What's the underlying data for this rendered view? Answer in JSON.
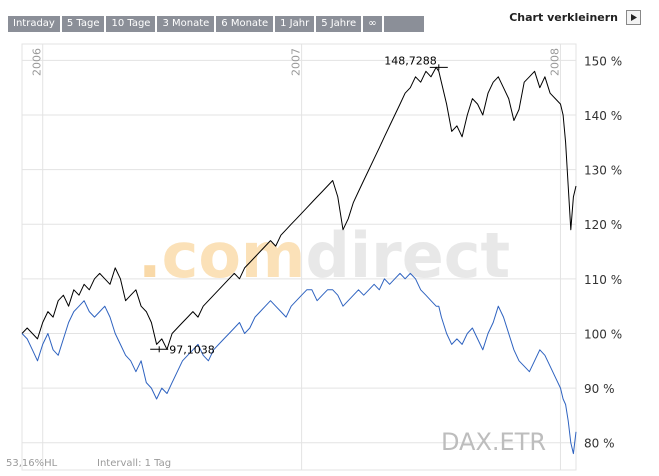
{
  "tabs": [
    "Intraday",
    "5 Tage",
    "10 Tage",
    "3 Monate",
    "6 Monate",
    "1 Jahr",
    "5 Jahre",
    "∞"
  ],
  "collapse_label": "Chart verkleinern",
  "watermark": ".comdirect",
  "symbol_label": "DAX.ETR",
  "footer": {
    "scale": "53,16%HL",
    "interval": "Intervall: 1 Tag"
  },
  "colors": {
    "black_series": "#000000",
    "blue_series": "#2f63c0",
    "grid": "#e3e3e3",
    "watermark_dot": "#f9d9a8",
    "watermark_com": "#fbe1b8",
    "watermark_direct": "#e8e8e8"
  },
  "chart_data": {
    "type": "line",
    "title": "",
    "xlabel": "",
    "ylabel": "",
    "x_range": [
      2005.92,
      2008.06
    ],
    "ylim": [
      75,
      153
    ],
    "x_ticks": [
      {
        "value": 2006.0,
        "label": "2006"
      },
      {
        "value": 2007.0,
        "label": "2007"
      },
      {
        "value": 2008.0,
        "label": "2008"
      }
    ],
    "y_ticks": [
      80,
      90,
      100,
      110,
      120,
      130,
      140,
      150
    ],
    "y_tick_suffix": " %",
    "grid": true,
    "annotations": [
      {
        "label": "148,7288",
        "x": 2007.53,
        "y": 148.73
      },
      {
        "label": "97,1038",
        "x": 2006.45,
        "y": 97.1
      }
    ],
    "series": [
      {
        "name": "Black",
        "color": "#000000",
        "x": [
          2005.92,
          2005.94,
          2005.96,
          2005.98,
          2006.0,
          2006.02,
          2006.04,
          2006.06,
          2006.08,
          2006.1,
          2006.12,
          2006.14,
          2006.16,
          2006.18,
          2006.2,
          2006.22,
          2006.24,
          2006.26,
          2006.28,
          2006.3,
          2006.32,
          2006.34,
          2006.36,
          2006.38,
          2006.4,
          2006.42,
          2006.44,
          2006.46,
          2006.48,
          2006.5,
          2006.52,
          2006.54,
          2006.56,
          2006.58,
          2006.6,
          2006.62,
          2006.64,
          2006.66,
          2006.68,
          2006.7,
          2006.72,
          2006.74,
          2006.76,
          2006.78,
          2006.8,
          2006.82,
          2006.84,
          2006.86,
          2006.88,
          2006.9,
          2006.92,
          2006.94,
          2006.96,
          2006.98,
          2007.0,
          2007.02,
          2007.04,
          2007.06,
          2007.08,
          2007.1,
          2007.12,
          2007.14,
          2007.16,
          2007.18,
          2007.2,
          2007.22,
          2007.24,
          2007.26,
          2007.28,
          2007.3,
          2007.32,
          2007.34,
          2007.36,
          2007.38,
          2007.4,
          2007.42,
          2007.44,
          2007.46,
          2007.48,
          2007.5,
          2007.52,
          2007.53,
          2007.54,
          2007.56,
          2007.58,
          2007.6,
          2007.62,
          2007.64,
          2007.66,
          2007.68,
          2007.7,
          2007.72,
          2007.74,
          2007.76,
          2007.78,
          2007.8,
          2007.82,
          2007.84,
          2007.86,
          2007.88,
          2007.9,
          2007.92,
          2007.94,
          2007.96,
          2007.98,
          2008.0,
          2008.01,
          2008.02,
          2008.03,
          2008.04,
          2008.05,
          2008.06
        ],
        "values": [
          100,
          101,
          100,
          99,
          102,
          104,
          103,
          106,
          107,
          105,
          108,
          107,
          109,
          108,
          110,
          111,
          110,
          109,
          112,
          110,
          106,
          107,
          108,
          105,
          104,
          102,
          98,
          99,
          97.1,
          100,
          101,
          102,
          103,
          104,
          103,
          105,
          106,
          107,
          108,
          109,
          110,
          111,
          110,
          112,
          113,
          114,
          115,
          116,
          117,
          116,
          118,
          119,
          120,
          121,
          122,
          123,
          124,
          125,
          126,
          127,
          128,
          125,
          119,
          121,
          124,
          126,
          128,
          130,
          132,
          134,
          136,
          138,
          140,
          142,
          144,
          145,
          147,
          146,
          148,
          147,
          148.73,
          148,
          146,
          142,
          137,
          138,
          136,
          140,
          143,
          142,
          140,
          144,
          146,
          147,
          145,
          143,
          139,
          141,
          146,
          147,
          148,
          145,
          147,
          144,
          143,
          142,
          140,
          135,
          127,
          119,
          125,
          127
        ]
      },
      {
        "name": "Blue",
        "color": "#2f63c0",
        "x": [
          2005.92,
          2005.94,
          2005.96,
          2005.98,
          2006.0,
          2006.02,
          2006.04,
          2006.06,
          2006.08,
          2006.1,
          2006.12,
          2006.14,
          2006.16,
          2006.18,
          2006.2,
          2006.22,
          2006.24,
          2006.26,
          2006.28,
          2006.3,
          2006.32,
          2006.34,
          2006.36,
          2006.38,
          2006.4,
          2006.42,
          2006.44,
          2006.46,
          2006.48,
          2006.5,
          2006.52,
          2006.54,
          2006.56,
          2006.58,
          2006.6,
          2006.62,
          2006.64,
          2006.66,
          2006.68,
          2006.7,
          2006.72,
          2006.74,
          2006.76,
          2006.78,
          2006.8,
          2006.82,
          2006.84,
          2006.86,
          2006.88,
          2006.9,
          2006.92,
          2006.94,
          2006.96,
          2006.98,
          2007.0,
          2007.02,
          2007.04,
          2007.06,
          2007.08,
          2007.1,
          2007.12,
          2007.14,
          2007.16,
          2007.18,
          2007.2,
          2007.22,
          2007.24,
          2007.26,
          2007.28,
          2007.3,
          2007.32,
          2007.34,
          2007.36,
          2007.38,
          2007.4,
          2007.42,
          2007.44,
          2007.46,
          2007.48,
          2007.5,
          2007.52,
          2007.53,
          2007.54,
          2007.56,
          2007.58,
          2007.6,
          2007.62,
          2007.64,
          2007.66,
          2007.68,
          2007.7,
          2007.72,
          2007.74,
          2007.76,
          2007.78,
          2007.8,
          2007.82,
          2007.84,
          2007.86,
          2007.88,
          2007.9,
          2007.92,
          2007.94,
          2007.96,
          2007.98,
          2008.0,
          2008.01,
          2008.02,
          2008.03,
          2008.04,
          2008.05,
          2008.06
        ],
        "values": [
          100,
          99,
          97,
          95,
          98,
          100,
          97,
          96,
          99,
          102,
          104,
          105,
          106,
          104,
          103,
          104,
          105,
          103,
          100,
          98,
          96,
          95,
          93,
          95,
          91,
          90,
          88,
          90,
          89,
          91,
          93,
          95,
          96,
          97,
          98,
          96,
          95,
          97,
          98,
          99,
          100,
          101,
          102,
          100,
          101,
          103,
          104,
          105,
          106,
          105,
          104,
          103,
          105,
          106,
          107,
          108,
          108,
          106,
          107,
          108,
          108,
          107,
          105,
          106,
          107,
          108,
          107,
          108,
          109,
          108,
          110,
          109,
          110,
          111,
          110,
          111,
          110,
          108,
          107,
          106,
          105,
          105,
          103,
          100,
          98,
          99,
          98,
          100,
          101,
          99,
          97,
          100,
          102,
          105,
          103,
          100,
          97,
          95,
          94,
          93,
          95,
          97,
          96,
          94,
          92,
          90,
          88,
          87,
          84,
          80,
          78,
          82
        ]
      }
    ]
  }
}
